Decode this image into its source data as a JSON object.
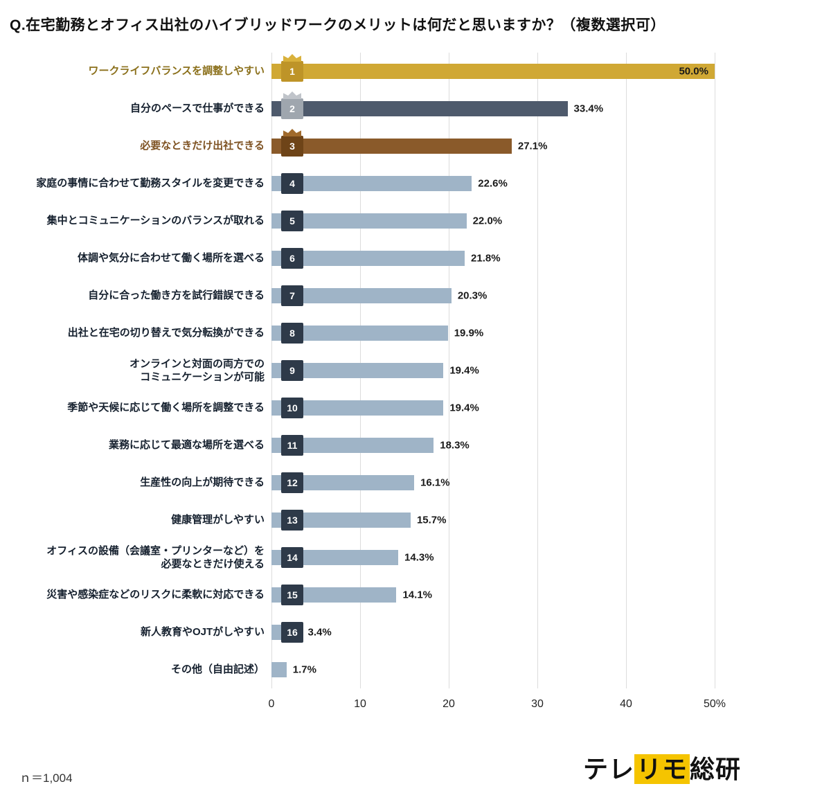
{
  "title": "Q.在宅勤務とオフィス出社のハイブリッドワークのメリットは何だと思いますか？（複数選択可）",
  "footer": {
    "n_label": "ｎ＝1,004",
    "logo_parts": [
      "テレ",
      "リモ",
      "総研"
    ]
  },
  "colors": {
    "bar_default": "#9FB4C7",
    "bar_gold": "#D0A834",
    "bar_slate": "#4E5A6C",
    "bar_brown": "#8A5A2A",
    "badge_default": "#2E3A49",
    "badge_gold": "#BE9428",
    "badge_silver": "#9FA6AE",
    "badge_bronze": "#6E4418",
    "crown_gold": "#D9B13B",
    "crown_silver": "#C0C4CA",
    "crown_bronze": "#A06A2C",
    "label_default": "#15202E",
    "label_gold": "#8B701B",
    "label_brown": "#7E5222",
    "gridline": "#DCDCDC",
    "value_text": "#1A1A1A",
    "logo_highlight": "#F5C400"
  },
  "chart_data": {
    "type": "bar",
    "orientation": "horizontal",
    "x_max": 50,
    "tick_values": [
      0,
      10,
      20,
      30,
      40,
      50
    ],
    "x_ticks": [
      "0",
      "10",
      "20",
      "30",
      "40",
      "50%"
    ],
    "rows": [
      {
        "rank": 1,
        "label": "ワークライフバランスを調整しやすい",
        "value": 50.0,
        "value_label": "50.0%",
        "bar_color": "#D0A834",
        "badge_color": "#BE9428",
        "label_color": "#8B701B",
        "crown": "gold",
        "value_inside": true
      },
      {
        "rank": 2,
        "label": "自分のペースで仕事ができる",
        "value": 33.4,
        "value_label": "33.4%",
        "bar_color": "#4E5A6C",
        "badge_color": "#9FA6AE",
        "label_color": "#15202E",
        "crown": "silver",
        "value_inside": false
      },
      {
        "rank": 3,
        "label": "必要なときだけ出社できる",
        "value": 27.1,
        "value_label": "27.1%",
        "bar_color": "#8A5A2A",
        "badge_color": "#6E4418",
        "label_color": "#7E5222",
        "crown": "bronze",
        "value_inside": false
      },
      {
        "rank": 4,
        "label": "家庭の事情に合わせて勤務スタイルを変更できる",
        "value": 22.6,
        "value_label": "22.6%",
        "bar_color": null,
        "badge_color": null,
        "label_color": null,
        "crown": null,
        "value_inside": false
      },
      {
        "rank": 5,
        "label": "集中とコミュニケーションのバランスが取れる",
        "value": 22.0,
        "value_label": "22.0%",
        "bar_color": null,
        "badge_color": null,
        "label_color": null,
        "crown": null,
        "value_inside": false
      },
      {
        "rank": 6,
        "label": "体調や気分に合わせて働く場所を選べる",
        "value": 21.8,
        "value_label": "21.8%",
        "bar_color": null,
        "badge_color": null,
        "label_color": null,
        "crown": null,
        "value_inside": false
      },
      {
        "rank": 7,
        "label": "自分に合った働き方を試行錯誤できる",
        "value": 20.3,
        "value_label": "20.3%",
        "bar_color": null,
        "badge_color": null,
        "label_color": null,
        "crown": null,
        "value_inside": false
      },
      {
        "rank": 8,
        "label": "出社と在宅の切り替えで気分転換ができる",
        "value": 19.9,
        "value_label": "19.9%",
        "bar_color": null,
        "badge_color": null,
        "label_color": null,
        "crown": null,
        "value_inside": false
      },
      {
        "rank": 9,
        "label": "オンラインと対面の両方での\nコミュニケーションが可能",
        "value": 19.4,
        "value_label": "19.4%",
        "bar_color": null,
        "badge_color": null,
        "label_color": null,
        "crown": null,
        "value_inside": false
      },
      {
        "rank": 10,
        "label": "季節や天候に応じて働く場所を調整できる",
        "value": 19.4,
        "value_label": "19.4%",
        "bar_color": null,
        "badge_color": null,
        "label_color": null,
        "crown": null,
        "value_inside": false
      },
      {
        "rank": 11,
        "label": "業務に応じて最適な場所を選べる",
        "value": 18.3,
        "value_label": "18.3%",
        "bar_color": null,
        "badge_color": null,
        "label_color": null,
        "crown": null,
        "value_inside": false
      },
      {
        "rank": 12,
        "label": "生産性の向上が期待できる",
        "value": 16.1,
        "value_label": "16.1%",
        "bar_color": null,
        "badge_color": null,
        "label_color": null,
        "crown": null,
        "value_inside": false
      },
      {
        "rank": 13,
        "label": "健康管理がしやすい",
        "value": 15.7,
        "value_label": "15.7%",
        "bar_color": null,
        "badge_color": null,
        "label_color": null,
        "crown": null,
        "value_inside": false
      },
      {
        "rank": 14,
        "label": "オフィスの設備（会議室・プリンターなど）を\n必要なときだけ使える",
        "value": 14.3,
        "value_label": "14.3%",
        "bar_color": null,
        "badge_color": null,
        "label_color": null,
        "crown": null,
        "value_inside": false
      },
      {
        "rank": 15,
        "label": "災害や感染症などのリスクに柔軟に対応できる",
        "value": 14.1,
        "value_label": "14.1%",
        "bar_color": null,
        "badge_color": null,
        "label_color": null,
        "crown": null,
        "value_inside": false
      },
      {
        "rank": 16,
        "label": "新人教育やOJTがしやすい",
        "value": 3.4,
        "value_label": "3.4%",
        "bar_color": null,
        "badge_color": null,
        "label_color": null,
        "crown": null,
        "value_inside": false
      },
      {
        "rank": null,
        "label": "その他（自由記述）",
        "value": 1.7,
        "value_label": "1.7%",
        "bar_color": null,
        "badge_color": null,
        "label_color": null,
        "crown": null,
        "value_inside": false
      }
    ]
  }
}
